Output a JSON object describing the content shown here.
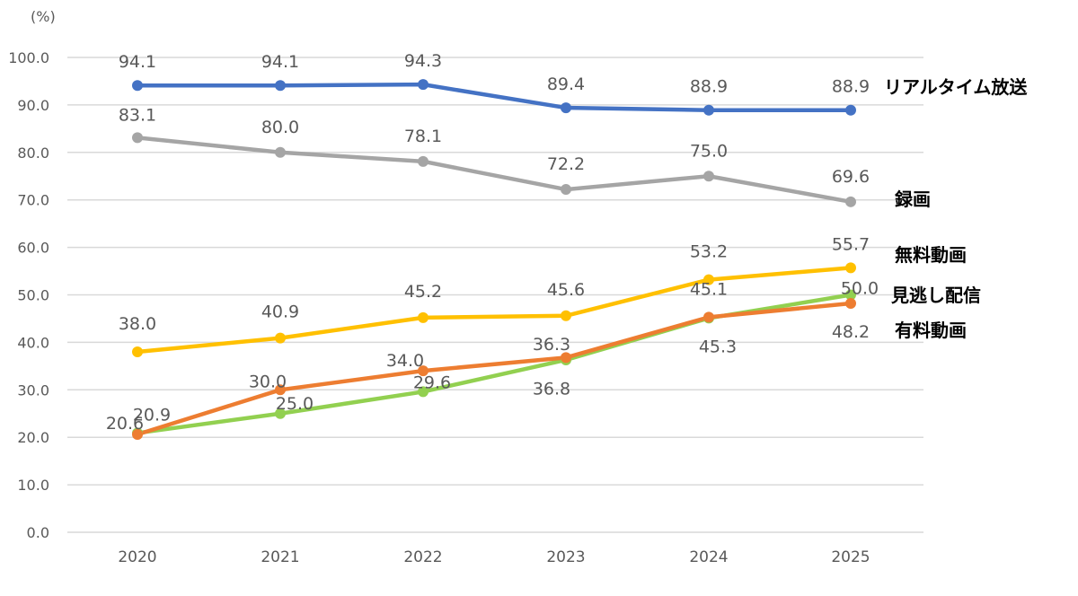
{
  "chart_data": {
    "type": "line",
    "unit_label": "(%)",
    "categories": [
      "2020",
      "2021",
      "2022",
      "2023",
      "2024",
      "2025"
    ],
    "ylim": [
      0,
      100
    ],
    "yticks": [
      "0.0",
      "10.0",
      "20.0",
      "30.0",
      "40.0",
      "50.0",
      "60.0",
      "70.0",
      "80.0",
      "90.0",
      "100.0"
    ],
    "grid": true,
    "legend_placement": "right-end labels",
    "series": [
      {
        "name": "リアルタイム放送",
        "color": "#4472c4",
        "values": [
          94.1,
          94.1,
          94.3,
          89.4,
          88.9,
          88.9
        ],
        "labels": [
          "94.1",
          "94.1",
          "94.3",
          "89.4",
          "88.9",
          "88.9"
        ]
      },
      {
        "name": "録画",
        "color": "#a5a5a5",
        "values": [
          83.1,
          80.0,
          78.1,
          72.2,
          75.0,
          69.6
        ],
        "labels": [
          "83.1",
          "80.0",
          "78.1",
          "72.2",
          "75.0",
          "69.6"
        ]
      },
      {
        "name": "無料動画",
        "color": "#ffc000",
        "values": [
          38.0,
          40.9,
          45.2,
          45.6,
          53.2,
          55.7
        ],
        "labels": [
          "38.0",
          "40.9",
          "45.2",
          "45.6",
          "53.2",
          "55.7"
        ]
      },
      {
        "name": "見逃し配信",
        "color": "#92d050",
        "values": [
          20.9,
          25.0,
          29.6,
          36.3,
          45.1,
          50.0
        ],
        "labels": [
          "20.9",
          "25.0",
          "29.6",
          "36.3",
          "45.1",
          "50.0"
        ]
      },
      {
        "name": "有料動画",
        "color": "#ed7d31",
        "values": [
          20.6,
          30.0,
          34.0,
          36.8,
          45.3,
          48.2
        ],
        "labels": [
          "20.6",
          "30.0",
          "34.0",
          "36.8",
          "45.3",
          "48.2"
        ]
      }
    ]
  }
}
